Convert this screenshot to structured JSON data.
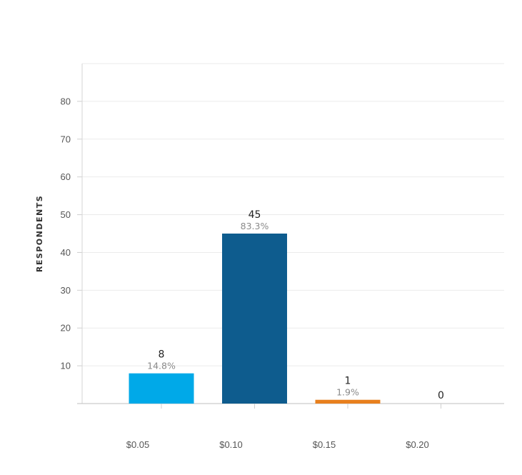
{
  "chart_data": {
    "type": "bar",
    "ylabel": "RESPONDENTS",
    "xlabel": "",
    "title": "",
    "ylim": [
      0,
      90
    ],
    "yticks": [
      10,
      20,
      30,
      40,
      50,
      60,
      70,
      80
    ],
    "grid": true,
    "categories": [
      "$0.05",
      "$0.10",
      "$0.15",
      "$0.20"
    ],
    "values": [
      8,
      45,
      1,
      0
    ],
    "percent_labels": [
      "14.8%",
      "83.3%",
      "1.9%",
      ""
    ],
    "colors": [
      "#00a9e8",
      "#0e5c8e",
      "#e8801e",
      "#cccccc"
    ]
  }
}
